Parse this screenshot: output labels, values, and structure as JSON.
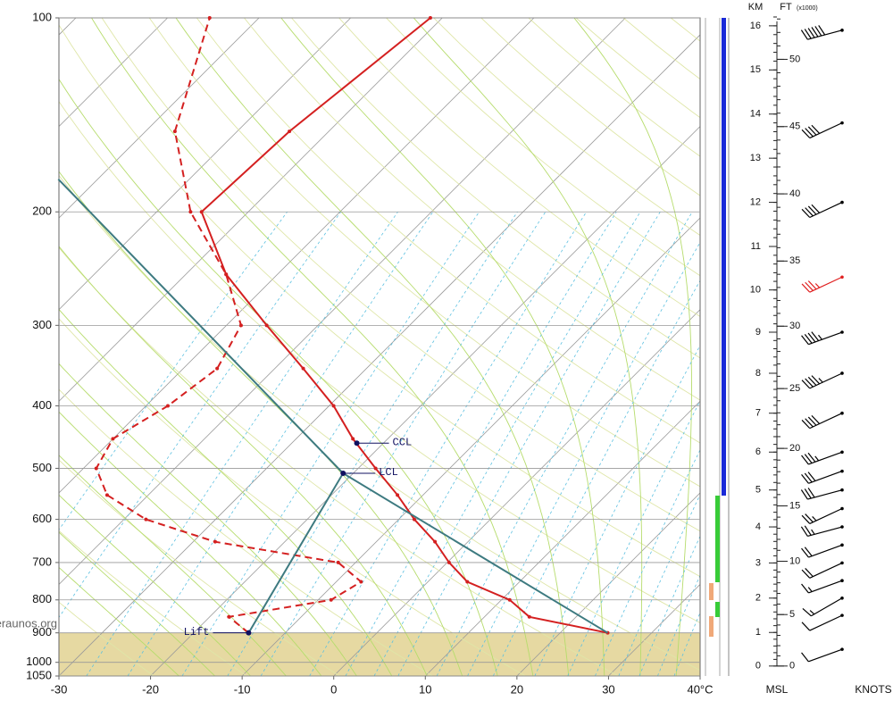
{
  "chart_data": {
    "type": "skew-t",
    "xlim": [
      -30,
      40
    ],
    "xticks": [
      -30,
      -20,
      -10,
      0,
      10,
      20,
      30,
      {
        "value": 40,
        "label": "40°C"
      }
    ],
    "ylim": [
      1050,
      100
    ],
    "yscale": "log",
    "yticks": [
      100,
      200,
      300,
      400,
      500,
      600,
      700,
      800,
      900,
      1000,
      1050
    ],
    "grid": true,
    "series": [
      {
        "color": "#d42020",
        "style": "solid",
        "pressure": [
          900,
          850,
          800,
          750,
          700,
          650,
          600,
          550,
          500,
          450,
          400,
          350,
          300,
          250,
          200,
          150,
          100
        ],
        "values": [
          25.2,
          14.9,
          10.9,
          4.3,
          0.2,
          -3.6,
          -8.3,
          -12.8,
          -18.1,
          -23.8,
          -29.5,
          -36.9,
          -45.6,
          -55.6,
          -65.1,
          -64.3,
          -61.3
        ]
      },
      {
        "color": "#d42020",
        "style": "dashed",
        "pressure": [
          900,
          850,
          800,
          750,
          700,
          650,
          600,
          550,
          500,
          450,
          400,
          350,
          300,
          250,
          200,
          150,
          100
        ],
        "values": [
          -14.0,
          -17.9,
          -8.6,
          -7.3,
          -11.9,
          -27.6,
          -37.6,
          -44.5,
          -48.6,
          -50.0,
          -47.6,
          -46.3,
          -48.4,
          -55.6,
          -66.3,
          -76.8,
          -85.4
        ]
      },
      {
        "color": "#3d7a80",
        "style": "solid",
        "pressure": [
          900,
          509,
          178
        ],
        "values": [
          25.2,
          -21.1,
          -84.3
        ]
      },
      {
        "color": "#3d7a80",
        "style": "solid",
        "pressure": [
          900,
          509
        ],
        "values": [
          -14.0,
          -21.1
        ]
      }
    ],
    "markers": [
      {
        "label": "CCL",
        "pressure": 457,
        "value": -22.9
      },
      {
        "label": "LCL",
        "pressure": 509,
        "value": -21.1
      },
      {
        "label": "Lift",
        "pressure": 900,
        "value": -14.0
      }
    ],
    "marker_color": "#101060",
    "ground_color": "#e6d9a2",
    "watermark": "www.keraunos.org",
    "altitude": {
      "km_label": "KM",
      "ft_label": "FT",
      "ft_unit": "(x1000)",
      "base_label": "MSL",
      "km_ticks": [
        0,
        1,
        2,
        3,
        4,
        5,
        6,
        7,
        8,
        9,
        10,
        11,
        12,
        13,
        14,
        15,
        16
      ],
      "ft_ticks": [
        0,
        5,
        10,
        15,
        20,
        25,
        30,
        35,
        40,
        45,
        50
      ]
    },
    "wind": {
      "unit_label": "KNOTS",
      "height_km": [
        0.5,
        1.5,
        2.0,
        2.5,
        3.0,
        3.5,
        4.0,
        4.5,
        5.0,
        5.5,
        6.0,
        7.0,
        8.0,
        9.0,
        10.3,
        12.0,
        13.8,
        15.9
      ],
      "speed": [
        10,
        10,
        15,
        15,
        20,
        20,
        25,
        25,
        30,
        30,
        35,
        40,
        45,
        45,
        35,
        40,
        40,
        60
      ],
      "direction": [
        250,
        245,
        240,
        250,
        245,
        250,
        255,
        245,
        255,
        250,
        250,
        245,
        245,
        250,
        245,
        245,
        245,
        255
      ],
      "colors": [
        "#000000",
        "#000000",
        "#000000",
        "#000000",
        "#000000",
        "#000000",
        "#000000",
        "#000000",
        "#000000",
        "#000000",
        "#000000",
        "#000000",
        "#000000",
        "#000000",
        "#e02020",
        "#000000",
        "#000000",
        "#000000"
      ]
    }
  }
}
